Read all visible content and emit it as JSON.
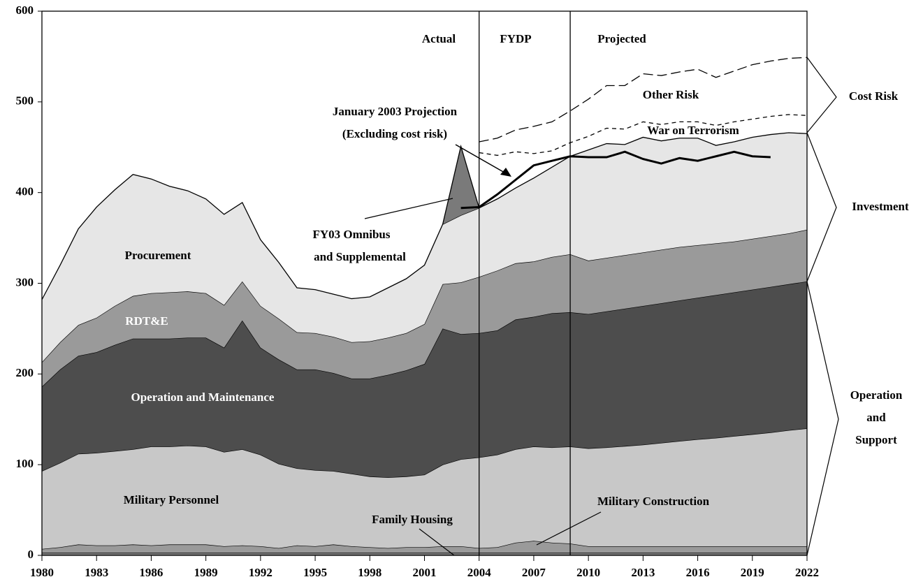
{
  "chart_data": {
    "type": "area",
    "stacked": true,
    "x": [
      1980,
      1981,
      1982,
      1983,
      1984,
      1985,
      1986,
      1987,
      1988,
      1989,
      1990,
      1991,
      1992,
      1993,
      1994,
      1995,
      1996,
      1997,
      1998,
      1999,
      2000,
      2001,
      2002,
      2003,
      2004,
      2005,
      2006,
      2007,
      2008,
      2009,
      2010,
      2011,
      2012,
      2013,
      2014,
      2015,
      2016,
      2017,
      2018,
      2019,
      2020,
      2021,
      2022
    ],
    "xlim": [
      1980,
      2022
    ],
    "xticks": [
      1980,
      1983,
      1986,
      1989,
      1992,
      1995,
      1998,
      2001,
      2004,
      2007,
      2010,
      2013,
      2016,
      2019,
      2022
    ],
    "ylim": [
      0,
      600
    ],
    "yticks": [
      0,
      100,
      200,
      300,
      400,
      500,
      600
    ],
    "dividers": [
      2004,
      2009
    ],
    "series": [
      {
        "name": "Family Housing",
        "color": "#7a7a7a",
        "values": [
          3,
          3,
          3,
          3,
          3,
          3,
          3,
          3,
          3,
          3,
          3,
          3,
          3,
          3,
          3,
          3,
          3,
          3,
          3,
          3,
          3,
          3,
          3,
          3,
          3,
          3,
          3,
          3,
          3,
          3,
          3,
          3,
          3,
          3,
          3,
          3,
          3,
          3,
          3,
          3,
          3,
          3,
          3
        ]
      },
      {
        "name": "Military Construction",
        "color": "#9a9a9a",
        "values": [
          4,
          6,
          9,
          8,
          8,
          9,
          8,
          9,
          9,
          9,
          7,
          8,
          7,
          5,
          8,
          7,
          9,
          7,
          6,
          5,
          6,
          6,
          7,
          7,
          5,
          6,
          11,
          13,
          11,
          10,
          7,
          7,
          7,
          7,
          7,
          7,
          7,
          7,
          7,
          7,
          7,
          7,
          7
        ]
      },
      {
        "name": "Military Personnel",
        "color": "#c8c8c8",
        "values": [
          86,
          93,
          100,
          102,
          104,
          105,
          109,
          108,
          109,
          108,
          104,
          106,
          101,
          93,
          85,
          84,
          81,
          80,
          78,
          78,
          78,
          80,
          90,
          96,
          100,
          102,
          103,
          104,
          105,
          107,
          108,
          109,
          110.5,
          112,
          114,
          116,
          118,
          119.5,
          121.5,
          123.5,
          125.5,
          128,
          130
        ]
      },
      {
        "name": "Operation and Maintenance",
        "color": "#4d4d4d",
        "values": [
          93,
          103,
          108,
          111,
          117,
          122,
          119,
          119,
          119,
          120,
          115,
          142,
          118,
          115,
          109,
          111,
          108,
          105,
          108,
          113,
          117,
          122,
          150,
          138,
          137,
          137,
          143,
          143,
          148,
          148,
          148,
          150,
          151.5,
          153,
          154,
          155,
          156,
          157.5,
          158.5,
          159.5,
          160.5,
          161,
          162
        ]
      },
      {
        "name": "RDT&E",
        "color": "#9a9a9a",
        "values": [
          27,
          30,
          34,
          38,
          43,
          47,
          50,
          51,
          51,
          49,
          47,
          43,
          46,
          45,
          41,
          40,
          40,
          40,
          41,
          41,
          41,
          44,
          49,
          57,
          62,
          66,
          62,
          61,
          62,
          64,
          59,
          59,
          59,
          59,
          59,
          59,
          58,
          57,
          56,
          56,
          56,
          56,
          57
        ]
      },
      {
        "name": "Procurement",
        "color": "#e6e6e6",
        "values": [
          69,
          85,
          106,
          122,
          128,
          134,
          126,
          117,
          111,
          104,
          100,
          87,
          73,
          62,
          49,
          48,
          47,
          48,
          49,
          55,
          60,
          65,
          66,
          74,
          76,
          79,
          83,
          92,
          99,
          108,
          122,
          126,
          122,
          127,
          120,
          120,
          118,
          108,
          110,
          112,
          112,
          111,
          106
        ]
      },
      {
        "name": "FY03 Omnibus",
        "color": "#7a7a7a",
        "values": [
          null,
          null,
          null,
          null,
          null,
          null,
          null,
          null,
          null,
          null,
          null,
          null,
          null,
          null,
          null,
          null,
          null,
          null,
          null,
          null,
          null,
          null,
          0,
          76,
          0,
          null,
          null,
          null,
          null,
          null,
          null,
          null,
          null,
          null,
          null,
          null,
          null,
          null,
          null,
          null,
          null,
          null,
          null
        ]
      }
    ],
    "lines": [
      {
        "name": "January 2003 Projection",
        "color": "#000000",
        "dash": "solid",
        "x": [
          2003,
          2004,
          2005,
          2006,
          2007,
          2008,
          2009,
          2010,
          2011,
          2012,
          2013,
          2014,
          2015,
          2016,
          2017,
          2018,
          2019,
          2020
        ],
        "values": [
          383,
          384,
          398,
          414,
          430,
          435,
          440,
          439,
          439,
          445,
          437,
          432,
          438,
          435,
          440,
          445,
          440,
          439
        ]
      },
      {
        "name": "War on Terrorism",
        "color": "#000000",
        "dash": "short",
        "x": [
          2004,
          2005,
          2006,
          2007,
          2008,
          2009,
          2010,
          2011,
          2012,
          2013,
          2014,
          2015,
          2016,
          2017,
          2018,
          2019,
          2020,
          2021,
          2022
        ],
        "values": [
          444,
          441,
          445,
          443,
          446,
          455,
          462,
          471,
          470,
          478,
          475,
          478,
          478,
          474,
          478,
          481,
          484,
          486,
          485
        ]
      },
      {
        "name": "Other Risk",
        "color": "#000000",
        "dash": "long",
        "x": [
          2004,
          2005,
          2006,
          2007,
          2008,
          2009,
          2010,
          2011,
          2012,
          2013,
          2014,
          2015,
          2016,
          2017,
          2018,
          2019,
          2020,
          2021,
          2022
        ],
        "values": [
          456,
          460,
          469,
          473,
          478,
          490,
          503,
          518,
          518,
          531,
          529,
          533,
          536,
          527,
          534,
          541,
          545,
          548,
          549
        ]
      }
    ],
    "annotations": [
      "Actual",
      "FYDP",
      "Projected",
      "(Excluding cost risk)",
      "and Supplemental",
      "Cost Risk",
      "Investment",
      "Operation",
      "and",
      "Support"
    ]
  }
}
